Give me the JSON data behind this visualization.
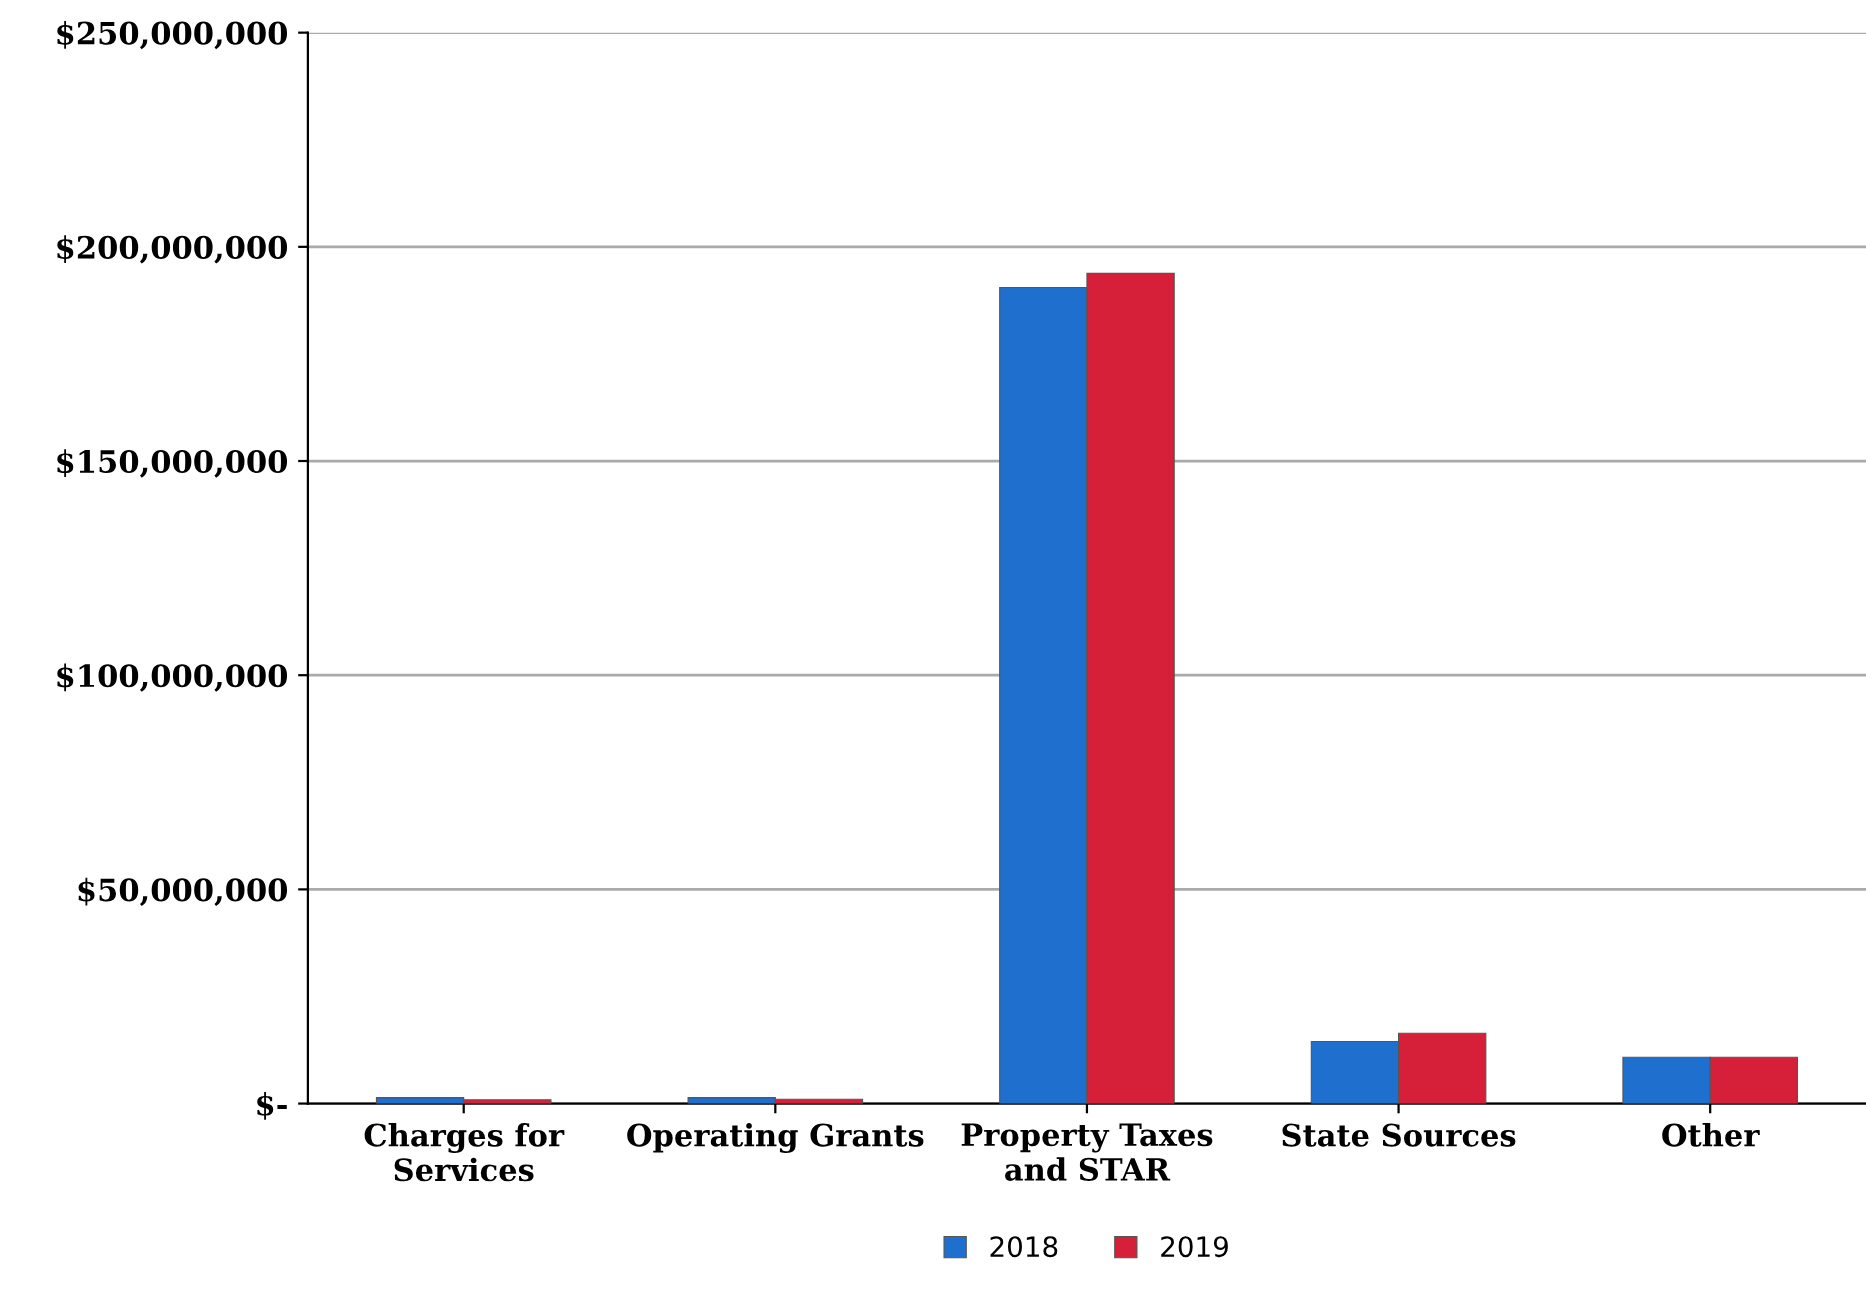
{
  "chart_data": {
    "type": "bar",
    "categories": [
      "Charges for\nServices",
      "Operating Grants",
      "Property Taxes\nand STAR",
      "State Sources",
      "Other"
    ],
    "series": [
      {
        "name": "2018",
        "color": "#1f6fcf",
        "values": [
          1400000,
          1400000,
          190500000,
          14500000,
          10800000
        ]
      },
      {
        "name": "2019",
        "color": "#d6203a",
        "values": [
          900000,
          1000000,
          193800000,
          16400000,
          10800000
        ]
      }
    ],
    "ylim": [
      0,
      250000000
    ],
    "yticks": [
      {
        "value": 0,
        "label": "$-"
      },
      {
        "value": 50000000,
        "label": "$50,000,000"
      },
      {
        "value": 100000000,
        "label": "$100,000,000"
      },
      {
        "value": 150000000,
        "label": "$150,000,000"
      },
      {
        "value": 200000000,
        "label": "$200,000,000"
      },
      {
        "value": 250000000,
        "label": "$250,000,000"
      }
    ],
    "grid": "y",
    "legend": "bottom"
  }
}
